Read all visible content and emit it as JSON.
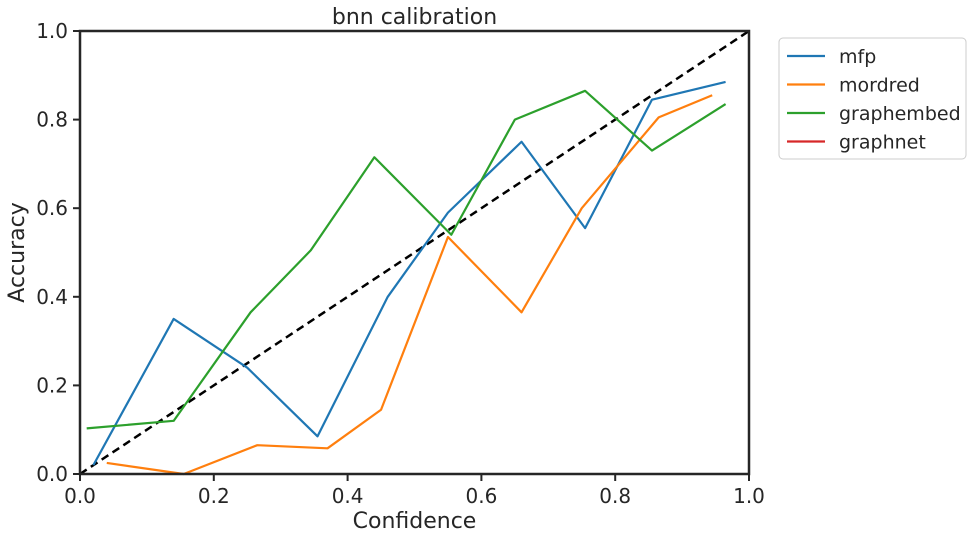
{
  "chart_data": {
    "type": "line",
    "title": "bnn calibration",
    "xlabel": "Confidence",
    "ylabel": "Accuracy",
    "xlim": [
      0.0,
      1.0
    ],
    "ylim": [
      0.0,
      1.0
    ],
    "xticks": [
      "0.0",
      "0.2",
      "0.4",
      "0.6",
      "0.8",
      "1.0"
    ],
    "yticks": [
      "0.0",
      "0.2",
      "0.4",
      "0.6",
      "0.8",
      "1.0"
    ],
    "grid": false,
    "legend_position": "outside-top-right",
    "reference_line": {
      "style": "dashed",
      "color": "#000000",
      "x": [
        0,
        1
      ],
      "y": [
        0,
        1
      ]
    },
    "series": [
      {
        "name": "mfp",
        "color": "#1f77b4",
        "x": [
          0.02,
          0.14,
          0.25,
          0.355,
          0.46,
          0.55,
          0.66,
          0.755,
          0.855,
          0.965
        ],
        "y": [
          0.02,
          0.35,
          0.24,
          0.085,
          0.4,
          0.59,
          0.75,
          0.555,
          0.845,
          0.885
        ]
      },
      {
        "name": "mordred",
        "color": "#ff7f0e",
        "x": [
          0.04,
          0.155,
          0.265,
          0.37,
          0.45,
          0.55,
          0.66,
          0.75,
          0.865,
          0.945
        ],
        "y": [
          0.025,
          0.0,
          0.065,
          0.058,
          0.145,
          0.535,
          0.365,
          0.6,
          0.805,
          0.855
        ]
      },
      {
        "name": "graphembed",
        "color": "#2ca02c",
        "x": [
          0.01,
          0.14,
          0.255,
          0.345,
          0.44,
          0.555,
          0.65,
          0.755,
          0.855,
          0.965
        ],
        "y": [
          0.103,
          0.12,
          0.365,
          0.505,
          0.715,
          0.54,
          0.8,
          0.865,
          0.73,
          0.835
        ]
      },
      {
        "name": "graphnet",
        "color": "#d62728",
        "x": [],
        "y": []
      }
    ]
  }
}
